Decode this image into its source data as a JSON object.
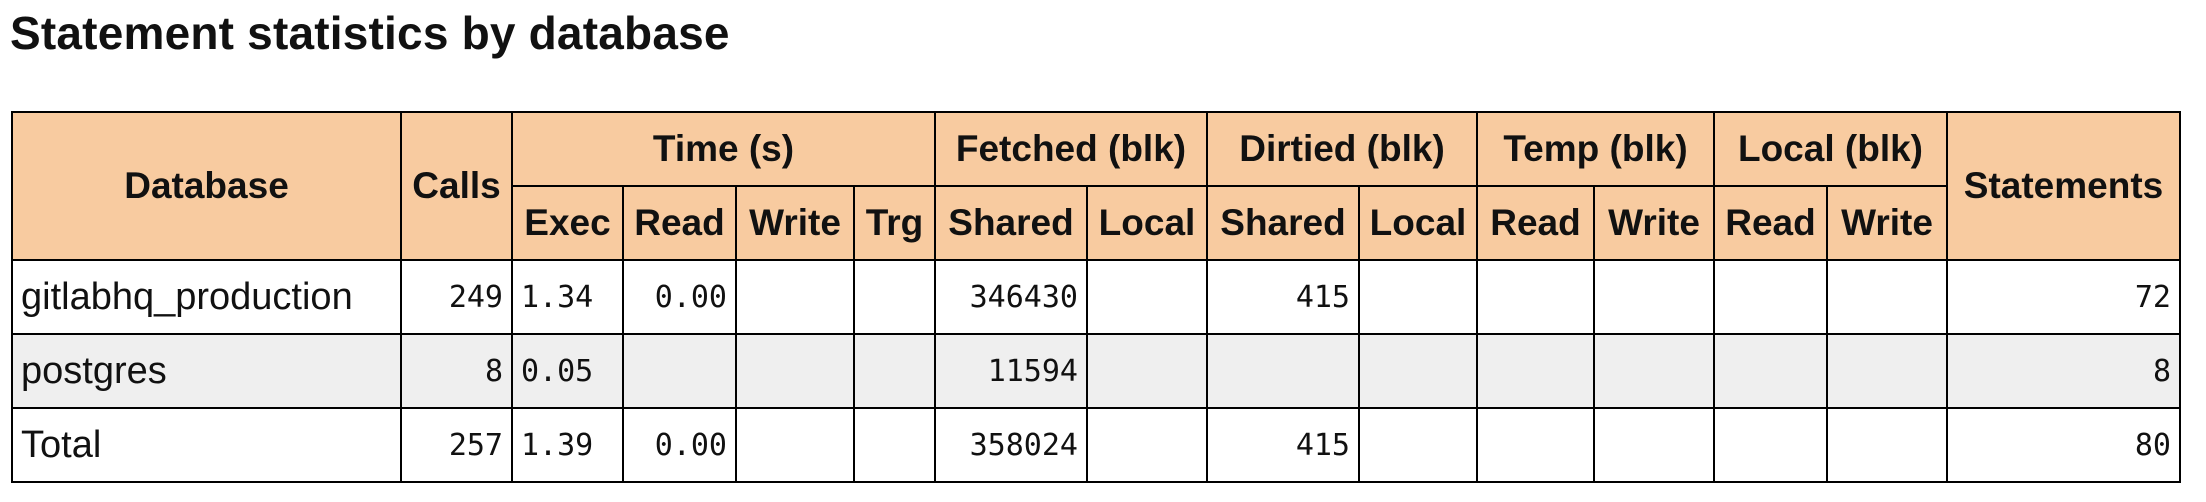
{
  "title": "Statement statistics by database",
  "headers": {
    "database": "Database",
    "calls": "Calls",
    "time_group": "Time (s)",
    "fetched_group": "Fetched (blk)",
    "dirtied_group": "Dirtied (blk)",
    "temp_group": "Temp (blk)",
    "local_group": "Local (blk)",
    "statements": "Statements",
    "exec": "Exec",
    "read": "Read",
    "write": "Write",
    "trg": "Trg",
    "fetched_shared": "Shared",
    "fetched_local": "Local",
    "dirtied_shared": "Shared",
    "dirtied_local": "Local",
    "temp_read": "Read",
    "temp_write": "Write",
    "local_read": "Read",
    "local_write": "Write"
  },
  "rows": [
    {
      "database": "gitlabhq_production",
      "calls": "249",
      "exec": "1.34",
      "read": "0.00",
      "write": "",
      "trg": "",
      "fetched_shared": "346430",
      "fetched_local": "",
      "dirtied_shared": "415",
      "dirtied_local": "",
      "temp_read": "",
      "temp_write": "",
      "local_read": "",
      "local_write": "",
      "statements": "72"
    },
    {
      "database": "postgres",
      "calls": "8",
      "exec": "0.05",
      "read": "",
      "write": "",
      "trg": "",
      "fetched_shared": "11594",
      "fetched_local": "",
      "dirtied_shared": "",
      "dirtied_local": "",
      "temp_read": "",
      "temp_write": "",
      "local_read": "",
      "local_write": "",
      "statements": "8"
    },
    {
      "database": "Total",
      "calls": "257",
      "exec": "1.39",
      "read": "0.00",
      "write": "",
      "trg": "",
      "fetched_shared": "358024",
      "fetched_local": "",
      "dirtied_shared": "415",
      "dirtied_local": "",
      "temp_read": "",
      "temp_write": "",
      "local_read": "",
      "local_write": "",
      "statements": "80"
    }
  ],
  "colors": {
    "header_bg": "#f8cba0",
    "alt_row_bg": "#efefef",
    "border": "#000000"
  }
}
